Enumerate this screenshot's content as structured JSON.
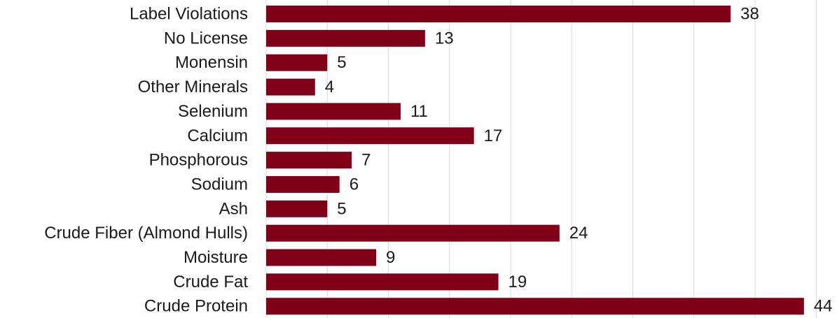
{
  "chart_data": {
    "type": "bar",
    "orientation": "horizontal",
    "title": "",
    "xlabel": "",
    "ylabel": "",
    "categories": [
      "Label Violations",
      "No License",
      "Monensin",
      "Other Minerals",
      "Selenium",
      "Calcium",
      "Phosphorous",
      "Sodium",
      "Ash",
      "Crude Fiber (Almond Hulls)",
      "Moisture",
      "Crude Fat",
      "Crude Protein"
    ],
    "values": [
      38,
      13,
      5,
      4,
      11,
      17,
      7,
      6,
      5,
      24,
      9,
      19,
      44
    ],
    "xlim": [
      0,
      45
    ],
    "gridline_step": 5,
    "grid": true,
    "legend": "none",
    "data_labels": true,
    "bar_color": "#800017",
    "grid_color": "#d9d9d9"
  }
}
